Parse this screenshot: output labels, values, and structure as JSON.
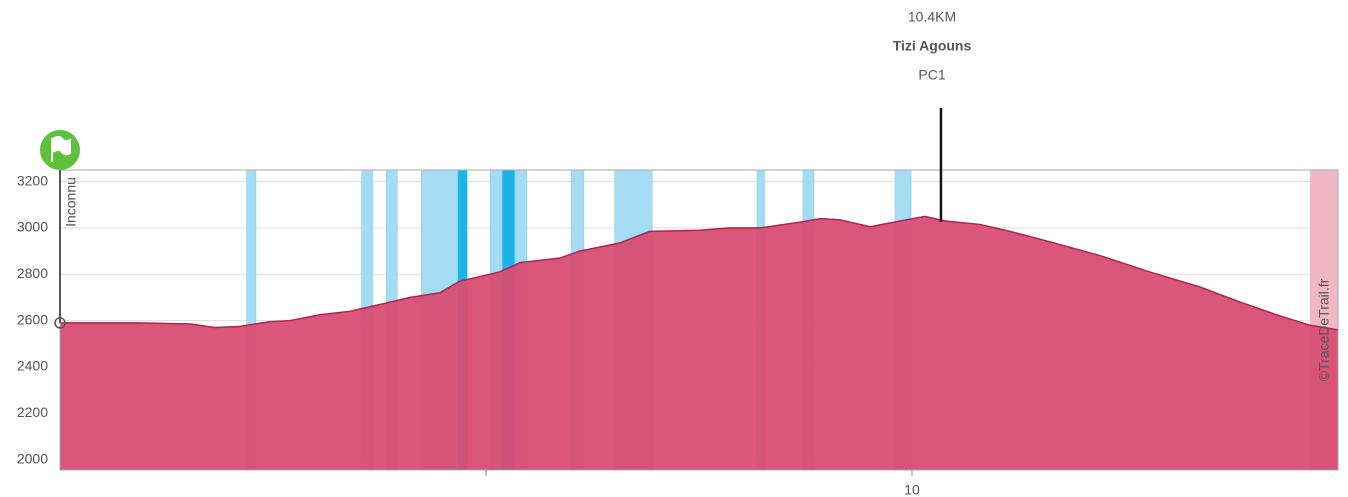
{
  "chart_data": {
    "type": "area",
    "color": "#d84d74",
    "line_color": "#a8284f",
    "grid": true,
    "xlim": [
      0,
      15
    ],
    "xticks": [
      {
        "value": 5,
        "label": null
      },
      10
    ],
    "ylim": [
      1955,
      3250
    ],
    "yticks": [
      2000,
      2200,
      2400,
      2600,
      2800,
      3000,
      3200
    ],
    "x": [
      0,
      0.47,
      0.94,
      1.53,
      1.82,
      2.11,
      2.46,
      2.7,
      3.05,
      3.4,
      3.76,
      4.11,
      4.46,
      4.69,
      4.93,
      5.16,
      5.4,
      5.87,
      6.1,
      6.57,
      6.92,
      7.51,
      7.86,
      8.22,
      8.69,
      8.92,
      9.15,
      9.51,
      9.86,
      10.15,
      10.39,
      10.8,
      11.15,
      11.62,
      12.21,
      12.79,
      13.38,
      13.85,
      14.32,
      14.67,
      15.0
    ],
    "values": [
      2590,
      2590,
      2590,
      2585,
      2570,
      2575,
      2595,
      2600,
      2625,
      2640,
      2670,
      2700,
      2720,
      2770,
      2790,
      2810,
      2850,
      2870,
      2900,
      2935,
      2985,
      2990,
      3000,
      3000,
      3025,
      3040,
      3035,
      3005,
      3030,
      3050,
      3030,
      3015,
      2985,
      2940,
      2880,
      2810,
      2745,
      2680,
      2620,
      2580,
      2560
    ],
    "bands": [
      {
        "start": 2.19,
        "end": 2.3,
        "color": "#a3dcf3"
      },
      {
        "start": 3.54,
        "end": 3.67,
        "color": "#a3dcf3"
      },
      {
        "start": 3.83,
        "end": 3.96,
        "color": "#a3dcf3"
      },
      {
        "start": 4.24,
        "end": 4.67,
        "color": "#a3dcf3"
      },
      {
        "start": 4.67,
        "end": 4.78,
        "color": "#1ab4ea"
      },
      {
        "start": 5.05,
        "end": 5.19,
        "color": "#a3dcf3"
      },
      {
        "start": 5.19,
        "end": 5.34,
        "color": "#1ab4ea"
      },
      {
        "start": 5.34,
        "end": 5.48,
        "color": "#a3dcf3"
      },
      {
        "start": 6.0,
        "end": 6.15,
        "color": "#a3dcf3"
      },
      {
        "start": 6.51,
        "end": 6.95,
        "color": "#a3dcf3"
      },
      {
        "start": 8.18,
        "end": 8.27,
        "color": "#a3dcf3"
      },
      {
        "start": 8.72,
        "end": 8.85,
        "color": "#a3dcf3"
      },
      {
        "start": 9.8,
        "end": 9.99,
        "color": "#a3dcf3"
      }
    ],
    "annotation": {
      "x": 10.34,
      "distance_label": "10.4KM",
      "name": "Tizi Agouns",
      "code": "PC1"
    },
    "start_label": "Inconnu",
    "watermark": "©TraceDeTrail.fr"
  }
}
